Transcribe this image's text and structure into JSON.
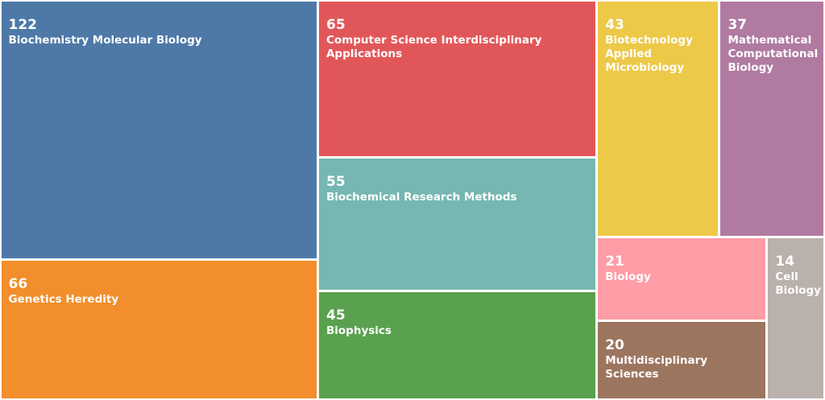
{
  "chart_data": {
    "type": "treemap",
    "items": [
      {
        "label": "Biochemistry Molecular Biology",
        "value": 122,
        "color": "#4e79a7"
      },
      {
        "label": "Genetics Heredity",
        "value": 66,
        "color": "#f28e2b"
      },
      {
        "label": "Computer Science Interdisciplinary Applications",
        "value": 65,
        "color": "#e15759"
      },
      {
        "label": "Biochemical Research Methods",
        "value": 55,
        "color": "#76b7b2"
      },
      {
        "label": "Biophysics",
        "value": 45,
        "color": "#59a14f"
      },
      {
        "label": "Biotechnology Applied Microbiology",
        "value": 43,
        "color": "#edc948"
      },
      {
        "label": "Mathematical Computational Biology",
        "value": 37,
        "color": "#b07aa1"
      },
      {
        "label": "Biology",
        "value": 21,
        "color": "#ff9da7"
      },
      {
        "label": "Multidisciplinary Sciences",
        "value": 20,
        "color": "#9c755f"
      },
      {
        "label": "Cell Biology",
        "value": 14,
        "color": "#bab0ac"
      }
    ]
  }
}
